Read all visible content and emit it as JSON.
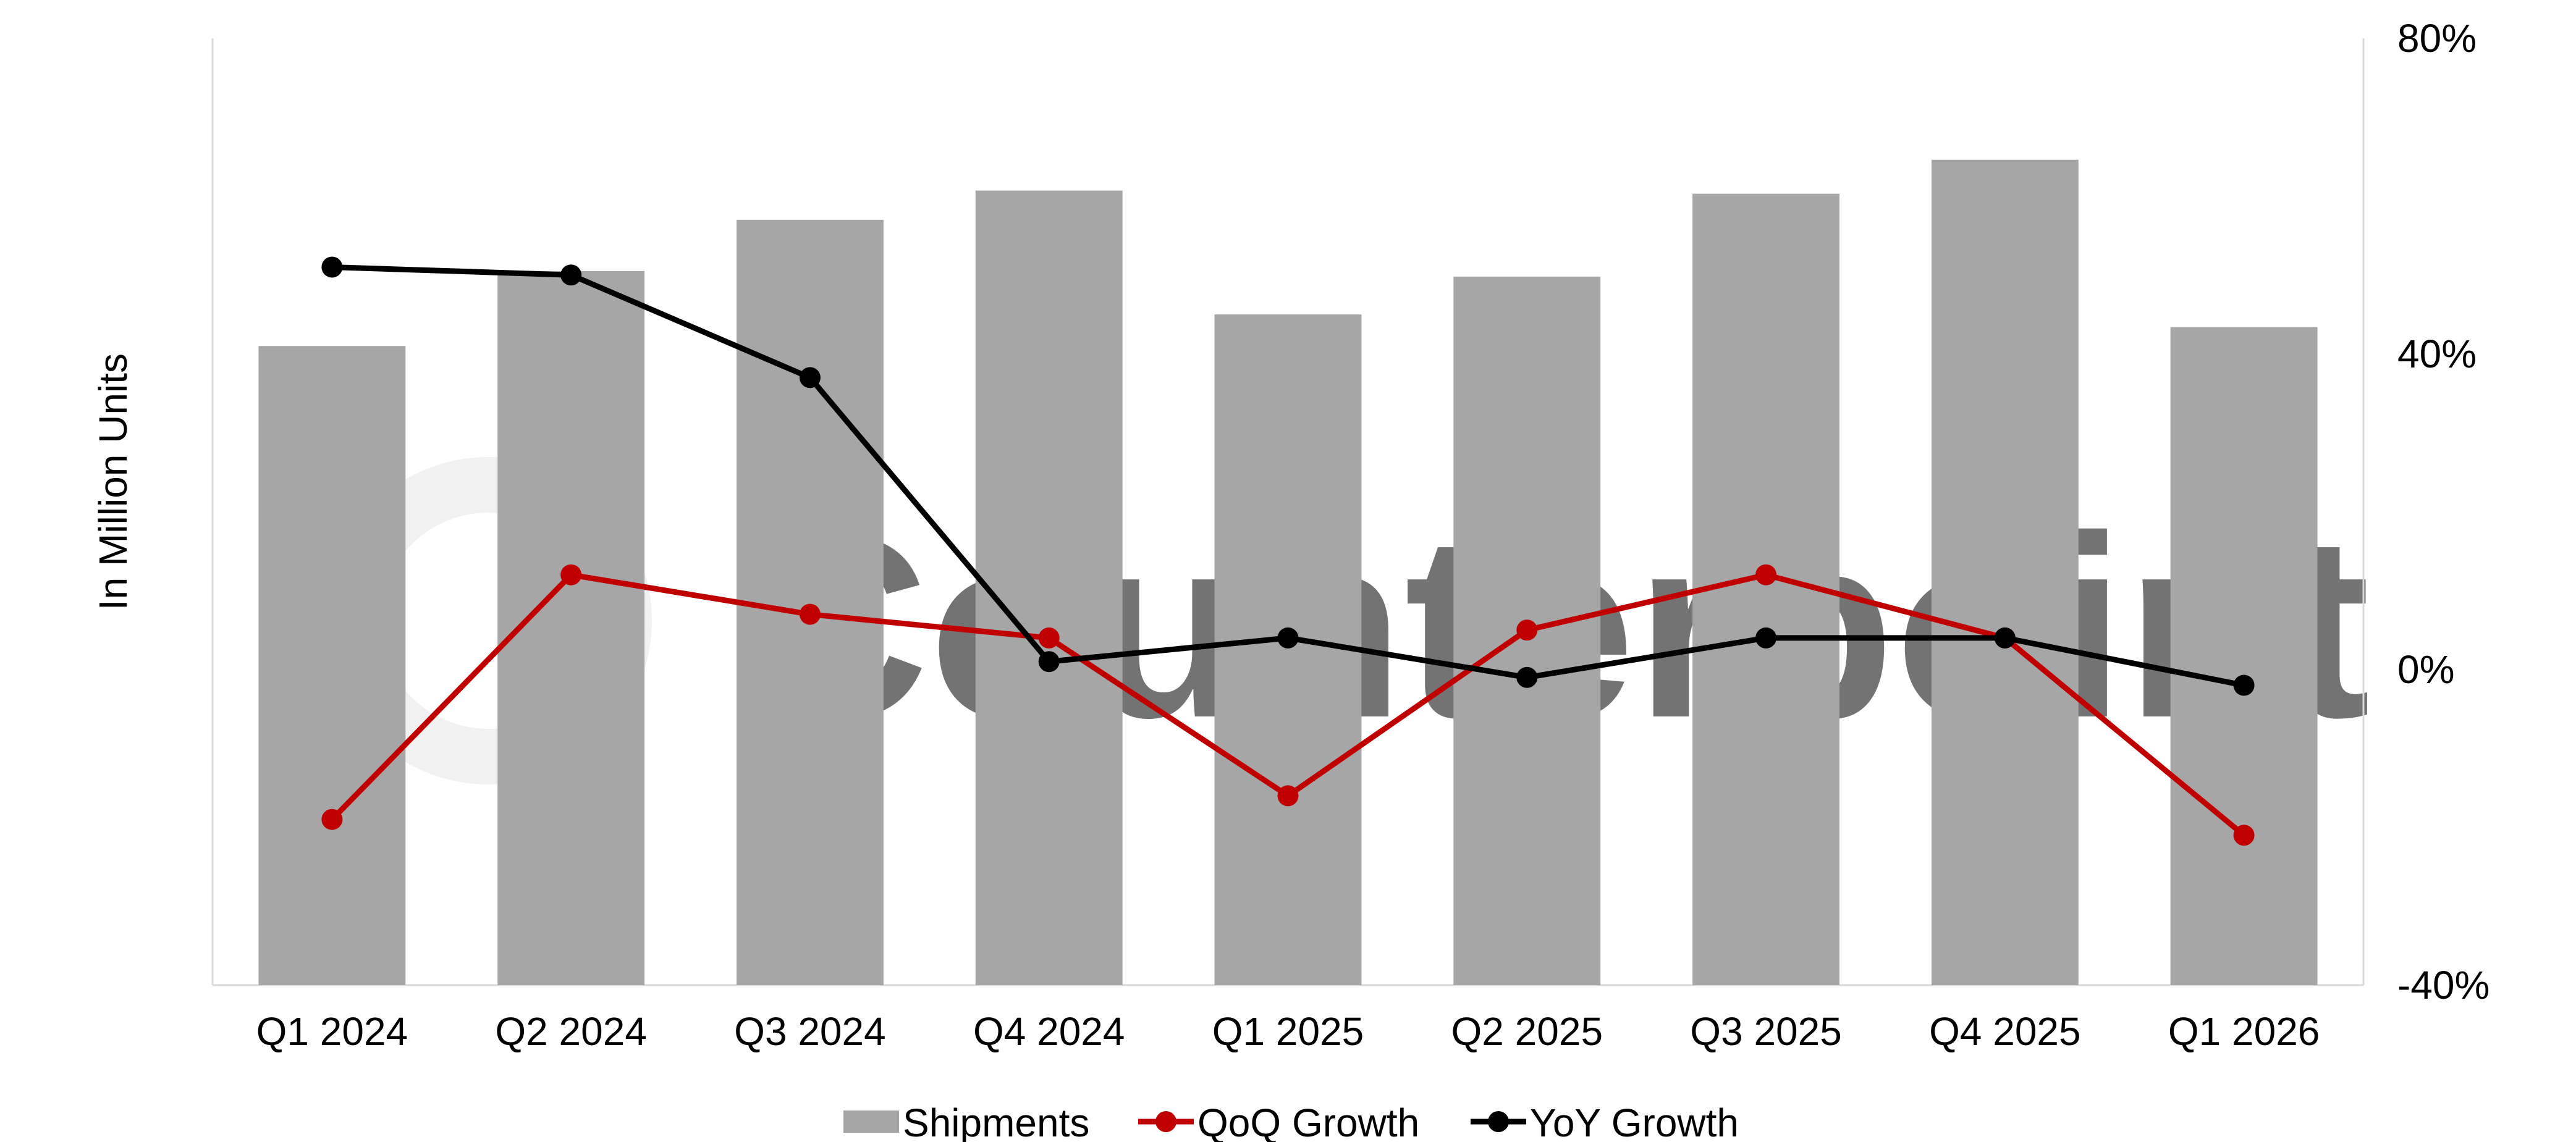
{
  "chart_data": {
    "type": "bar",
    "categories": [
      "Q1 2024",
      "Q2 2024",
      "Q3 2024",
      "Q4 2024",
      "Q1 2025",
      "Q2 2025",
      "Q3 2025",
      "Q4 2025",
      "Q1 2026"
    ],
    "series": [
      {
        "name": "Shipments",
        "type": "bar",
        "axis": "left",
        "color": "#a6a6a6",
        "values": [
          81,
          90.5,
          97,
          100.7,
          85,
          89.8,
          100.3,
          104.6,
          83.4
        ]
      },
      {
        "name": "QoQ Growth",
        "type": "line",
        "axis": "right",
        "unit": "%",
        "color": "#c00000",
        "values": [
          -19,
          12,
          7,
          4,
          -16,
          5,
          12,
          4,
          -21
        ]
      },
      {
        "name": "YoY Growth",
        "type": "line",
        "axis": "right",
        "unit": "%",
        "color": "#000000",
        "values": [
          51,
          50,
          37,
          1,
          4,
          -1,
          4,
          4,
          -2
        ]
      }
    ],
    "ylabel": "In Million Units",
    "y_left_range": [
      0,
      120
    ],
    "y_left_ticks_shown": false,
    "y_right_range": [
      -40,
      80
    ],
    "y_right_ticks": [
      "80%",
      "40%",
      "0%",
      "-40%"
    ],
    "grid": false,
    "legend_position": "bottom",
    "watermark": "Counterpoint"
  }
}
